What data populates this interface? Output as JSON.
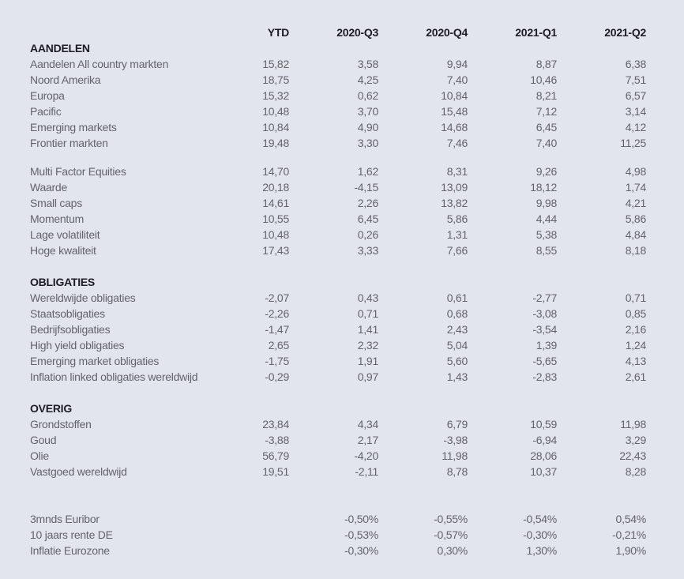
{
  "colors": {
    "background": "#e2e5ec",
    "header_text": "#1b1d22",
    "body_text": "#626469"
  },
  "table": {
    "columns": [
      "YTD",
      "2020-Q3",
      "2020-Q4",
      "2021-Q1",
      "2021-Q2"
    ],
    "sections": [
      {
        "title": "AANDELEN",
        "blocks": [
          [
            {
              "label": "Aandelen All country markten",
              "values": [
                "15,82",
                "3,58",
                "9,94",
                "8,87",
                "6,38"
              ]
            },
            {
              "label": "Noord Amerika",
              "values": [
                "18,75",
                "4,25",
                "7,40",
                "10,46",
                "7,51"
              ]
            },
            {
              "label": "Europa",
              "values": [
                "15,32",
                "0,62",
                "10,84",
                "8,21",
                "6,57"
              ]
            },
            {
              "label": "Pacific",
              "values": [
                "10,48",
                "3,70",
                "15,48",
                "7,12",
                "3,14"
              ]
            },
            {
              "label": "Emerging markets",
              "values": [
                "10,84",
                "4,90",
                "14,68",
                "6,45",
                "4,12"
              ]
            },
            {
              "label": "Frontier markten",
              "values": [
                "19,48",
                "3,30",
                "7,46",
                "7,40",
                "11,25"
              ]
            }
          ],
          [
            {
              "label": "Multi Factor Equities",
              "values": [
                "14,70",
                "1,62",
                "8,31",
                "9,26",
                "4,98"
              ]
            },
            {
              "label": "Waarde",
              "values": [
                "20,18",
                "-4,15",
                "13,09",
                "18,12",
                "1,74"
              ]
            },
            {
              "label": "Small caps",
              "values": [
                "14,61",
                "2,26",
                "13,82",
                "9,98",
                "4,21"
              ]
            },
            {
              "label": "Momentum",
              "values": [
                "10,55",
                "6,45",
                "5,86",
                "4,44",
                "5,86"
              ]
            },
            {
              "label": "Lage volatiliteit",
              "values": [
                "10,48",
                "0,26",
                "1,31",
                "5,38",
                "4,84"
              ]
            },
            {
              "label": "Hoge kwaliteit",
              "values": [
                "17,43",
                "3,33",
                "7,66",
                "8,55",
                "8,18"
              ]
            }
          ]
        ]
      },
      {
        "title": "OBLIGATIES",
        "blocks": [
          [
            {
              "label": "Wereldwijde obligaties",
              "values": [
                "-2,07",
                "0,43",
                "0,61",
                "-2,77",
                "0,71"
              ]
            },
            {
              "label": "Staatsobligaties",
              "values": [
                "-2,26",
                "0,71",
                "0,68",
                "-3,08",
                "0,85"
              ]
            },
            {
              "label": "Bedrijfsobligaties",
              "values": [
                "-1,47",
                "1,41",
                "2,43",
                "-3,54",
                "2,16"
              ]
            },
            {
              "label": "High yield obligaties",
              "values": [
                "2,65",
                "2,32",
                "5,04",
                "1,39",
                "1,24"
              ]
            },
            {
              "label": "Emerging market obligaties",
              "values": [
                "-1,75",
                "1,91",
                "5,60",
                "-5,65",
                "4,13"
              ]
            },
            {
              "label": "Inflation linked obligaties wereldwijd",
              "values": [
                "-0,29",
                "0,97",
                "1,43",
                "-2,83",
                "2,61"
              ]
            }
          ]
        ]
      },
      {
        "title": "OVERIG",
        "blocks": [
          [
            {
              "label": "Grondstoffen",
              "values": [
                "23,84",
                "4,34",
                "6,79",
                "10,59",
                "11,98"
              ]
            },
            {
              "label": "Goud",
              "values": [
                "-3,88",
                "2,17",
                "-3,98",
                "-6,94",
                "3,29"
              ]
            },
            {
              "label": "Olie",
              "values": [
                "56,79",
                "-4,20",
                "11,98",
                "28,06",
                "22,43"
              ]
            },
            {
              "label": "Vastgoed wereldwijd",
              "values": [
                "19,51",
                "-2,11",
                "8,78",
                "10,37",
                "8,28"
              ]
            }
          ]
        ]
      }
    ],
    "rates": [
      {
        "label": "3mnds Euribor",
        "values": [
          "",
          "-0,50%",
          "-0,55%",
          "-0,54%",
          "0,54%"
        ]
      },
      {
        "label": "10 jaars rente DE",
        "values": [
          "",
          "-0,53%",
          "-0,57%",
          "-0,30%",
          "-0,21%"
        ]
      },
      {
        "label": "Inflatie Eurozone",
        "values": [
          "",
          "-0,30%",
          "0,30%",
          "1,30%",
          "1,90%"
        ]
      }
    ]
  }
}
